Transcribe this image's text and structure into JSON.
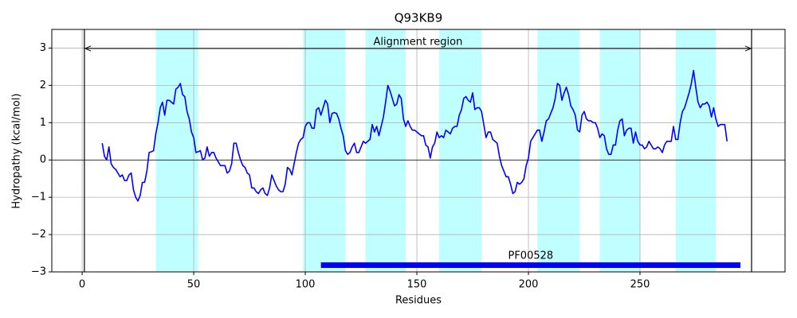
{
  "chart_data": {
    "type": "line",
    "title": "Q93KB9",
    "xlabel": "Residues",
    "ylabel": "Hydropathy (kcal/mol)",
    "xlim": [
      -13.6,
      315
    ],
    "ylim": [
      -3,
      3.5
    ],
    "xticks": [
      0,
      50,
      100,
      150,
      200,
      250
    ],
    "yticks": [
      {
        "value": -3,
        "label": "−3"
      },
      {
        "value": -2,
        "label": "−2"
      },
      {
        "value": -1,
        "label": "−1"
      },
      0,
      1,
      2,
      3
    ],
    "grid": true,
    "hline": 0,
    "color": "#0000ff",
    "span_color": "#00ffff",
    "spans": [
      [
        33,
        52
      ],
      [
        99,
        118
      ],
      [
        127,
        145
      ],
      [
        160,
        179
      ],
      [
        204,
        223
      ],
      [
        232,
        250
      ],
      [
        266,
        284
      ]
    ],
    "alignment": {
      "text": "Alignment region",
      "start": 1,
      "end": 300
    },
    "domain": {
      "label": "PF00528",
      "start": 107,
      "end": 295,
      "color": "#0000ff"
    },
    "x": [
      9,
      10,
      11,
      12,
      13,
      14,
      15,
      16,
      17,
      18,
      19,
      20,
      21,
      22,
      23,
      24,
      25,
      26,
      27,
      28,
      29,
      30,
      31,
      32,
      33,
      34,
      35,
      36,
      37,
      38,
      39,
      40,
      41,
      42,
      43,
      44,
      45,
      46,
      47,
      48,
      49,
      50,
      51,
      52,
      53,
      54,
      55,
      56,
      57,
      58,
      59,
      60,
      61,
      62,
      63,
      64,
      65,
      66,
      67,
      68,
      69,
      70,
      71,
      72,
      73,
      74,
      75,
      76,
      77,
      78,
      79,
      80,
      81,
      82,
      83,
      84,
      85,
      86,
      87,
      88,
      89,
      90,
      91,
      92,
      93,
      94,
      95,
      96,
      97,
      98,
      99,
      100,
      101,
      102,
      103,
      104,
      105,
      106,
      107,
      108,
      109,
      110,
      111,
      112,
      113,
      114,
      115,
      116,
      117,
      118,
      119,
      120,
      121,
      122,
      123,
      124,
      125,
      126,
      127,
      128,
      129,
      130,
      131,
      132,
      133,
      134,
      135,
      136,
      137,
      138,
      139,
      140,
      141,
      142,
      143,
      144,
      145,
      146,
      147,
      148,
      149,
      150,
      151,
      152,
      153,
      154,
      155,
      156,
      157,
      158,
      159,
      160,
      161,
      162,
      163,
      164,
      165,
      166,
      167,
      168,
      169,
      170,
      171,
      172,
      173,
      174,
      175,
      176,
      177,
      178,
      179,
      180,
      181,
      182,
      183,
      184,
      185,
      186,
      187,
      188,
      189,
      190,
      191,
      192,
      193,
      194,
      195,
      196,
      197,
      198,
      199,
      200,
      201,
      202,
      203,
      204,
      205,
      206,
      207,
      208,
      209,
      210,
      211,
      212,
      213,
      214,
      215,
      216,
      217,
      218,
      219,
      220,
      221,
      222,
      223,
      224,
      225,
      226,
      227,
      228,
      229,
      230,
      231,
      232,
      233,
      234,
      235,
      236,
      237,
      238,
      239,
      240,
      241,
      242,
      243,
      244,
      245,
      246,
      247,
      248,
      249,
      250,
      251,
      252,
      253,
      254,
      255,
      256,
      257,
      258,
      259,
      260,
      261,
      262,
      263,
      264,
      265,
      266,
      267,
      268,
      269,
      270,
      271,
      272,
      273,
      274,
      275,
      276,
      277,
      278,
      279,
      280,
      281,
      282,
      283,
      284,
      285,
      286,
      287,
      288,
      289
    ],
    "values": [
      0.45,
      0.1,
      0,
      0.35,
      -0.1,
      -0.2,
      -0.25,
      -0.35,
      -0.45,
      -0.4,
      -0.55,
      -0.55,
      -0.4,
      -0.35,
      -0.8,
      -1.0,
      -1.1,
      -0.95,
      -0.6,
      -0.6,
      -0.3,
      0.2,
      0.22,
      0.25,
      0.7,
      1.0,
      1.4,
      1.55,
      1.2,
      1.6,
      1.6,
      1.55,
      1.5,
      1.9,
      1.95,
      2.05,
      1.75,
      1.7,
      1.3,
      1.1,
      0.75,
      0.6,
      0.2,
      0.22,
      0.25,
      0,
      0.05,
      0.35,
      0.1,
      0.2,
      0.2,
      0.05,
      -0.05,
      -0.15,
      -0.15,
      -0.15,
      -0.35,
      -0.3,
      -0.1,
      0.45,
      0.45,
      0.2,
      0,
      -0.15,
      -0.2,
      -0.35,
      -0.4,
      -0.75,
      -0.75,
      -0.85,
      -0.9,
      -0.8,
      -0.75,
      -0.9,
      -0.95,
      -0.75,
      -0.4,
      -0.55,
      -0.7,
      -0.8,
      -0.85,
      -0.85,
      -0.65,
      -0.2,
      -0.25,
      -0.4,
      -0.1,
      0.2,
      0.45,
      0.55,
      0.6,
      0.9,
      1.0,
      1.0,
      0.85,
      0.85,
      1.35,
      1.4,
      1.2,
      1.4,
      1.6,
      1.5,
      1.0,
      1.25,
      1.27,
      1.25,
      1.1,
      0.85,
      0.65,
      0.25,
      0.15,
      0.2,
      0.35,
      0.45,
      0.2,
      0.2,
      0.35,
      0.5,
      0.45,
      0.5,
      0.55,
      0.95,
      0.75,
      0.9,
      0.65,
      0.9,
      1.15,
      1.55,
      2.0,
      1.85,
      1.65,
      1.45,
      1.5,
      1.75,
      1.65,
      1.1,
      0.9,
      1.05,
      0.9,
      0.8,
      0.8,
      0.75,
      0.7,
      0.65,
      0.65,
      0.4,
      0.35,
      0.05,
      0.35,
      0.45,
      0.75,
      0.6,
      0.65,
      0.6,
      0.8,
      0.75,
      0.7,
      0.85,
      0.9,
      0.9,
      1.2,
      1.35,
      1.65,
      1.7,
      1.6,
      1.55,
      1.8,
      1.35,
      1.4,
      1.4,
      1.3,
      0.95,
      0.6,
      0.75,
      0.75,
      0.55,
      0.5,
      0.45,
      0.1,
      -0.15,
      -0.3,
      -0.45,
      -0.45,
      -0.65,
      -0.9,
      -0.85,
      -0.6,
      -0.65,
      -0.6,
      -0.5,
      -0.15,
      0.05,
      0.5,
      0.6,
      0.7,
      0.8,
      0.8,
      0.5,
      0.75,
      1.05,
      1.1,
      1.25,
      1.4,
      1.65,
      2.05,
      2.0,
      1.6,
      1.8,
      1.95,
      1.75,
      1.45,
      1.35,
      1.2,
      0.8,
      0.75,
      1.2,
      1.3,
      1.1,
      1.05,
      1.05,
      1.0,
      1.0,
      0.85,
      0.6,
      0.7,
      0.65,
      0.3,
      0.15,
      0.15,
      0.4,
      0.4,
      0.8,
      1.05,
      1.1,
      0.65,
      0.8,
      0.85,
      0.85,
      0.45,
      0.75,
      0.5,
      0.4,
      0.4,
      0.3,
      0.35,
      0.5,
      0.4,
      0.3,
      0.3,
      0.35,
      0.3,
      0.2,
      0.4,
      0.5,
      0.5,
      0.5,
      0.9,
      0.55,
      0.55,
      1.0,
      1.3,
      1.4,
      1.6,
      1.8,
      2.05,
      2.4,
      1.95,
      1.55,
      1.4,
      1.5,
      1.5,
      1.55,
      1.45,
      1.15,
      1.4,
      1.1,
      0.9,
      0.95,
      0.95,
      0.95,
      0.5
    ]
  }
}
